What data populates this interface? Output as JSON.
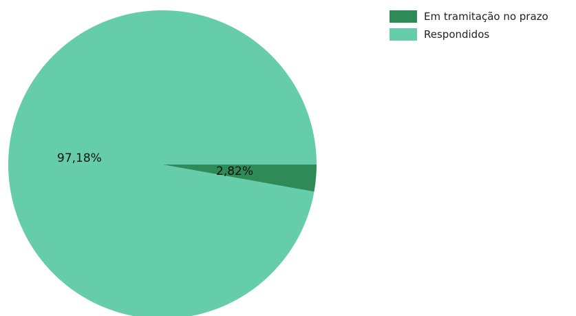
{
  "chart_data": {
    "type": "pie",
    "slices": [
      {
        "label": "Em tramitação no prazo",
        "value": 2.82,
        "display": "2,82%",
        "color": "#2e8b57"
      },
      {
        "label": "Respondidos",
        "value": 97.18,
        "display": "97,18%",
        "color": "#66cdaa"
      }
    ],
    "legend": {
      "position": "top-right",
      "items": [
        {
          "label": "Em tramitação no prazo",
          "color": "#2e8b57"
        },
        {
          "label": "Respondidos",
          "color": "#66cdaa"
        }
      ]
    }
  }
}
